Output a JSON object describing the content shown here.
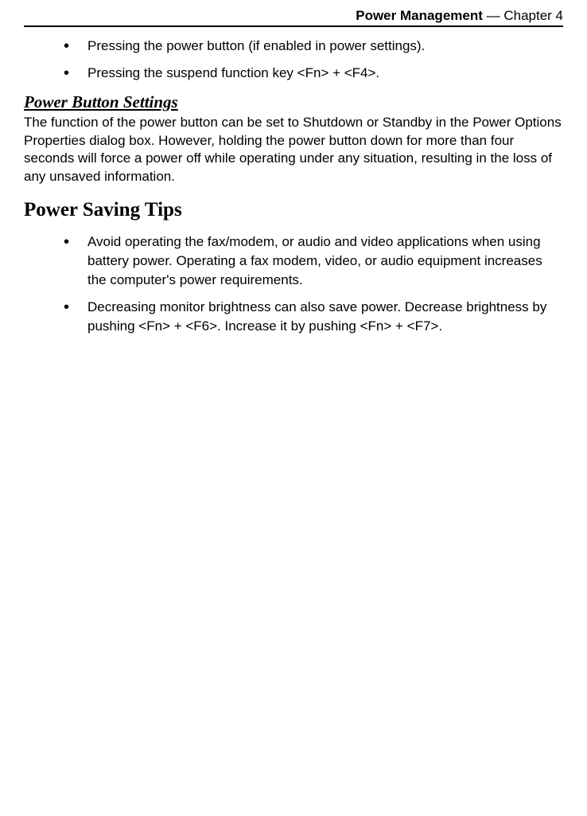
{
  "header": {
    "title_bold": "Power Management",
    "title_rest": " — Chapter 4"
  },
  "intro_bullets": [
    "Pressing the power button (if enabled in power settings).",
    "Pressing the suspend function key <Fn> + <F4>."
  ],
  "section1": {
    "heading": "Power Button Settings",
    "body": "The function of the power button can be set to Shutdown or Standby in the Power Options Properties dialog box. However, holding the power button down for more than four seconds will force a power off while operating under any situation, resulting in the loss of any unsaved information."
  },
  "section2": {
    "heading": "Power Saving Tips",
    "bullets": [
      "Avoid operating the fax/modem, or audio and video applications when using battery power. Operating a fax modem, video, or audio equipment increases the computer's power requirements.",
      "Decreasing monitor brightness can also save power. Decrease brightness by pushing <Fn> + <F6>. Increase it by pushing <Fn> + <F7>."
    ]
  }
}
